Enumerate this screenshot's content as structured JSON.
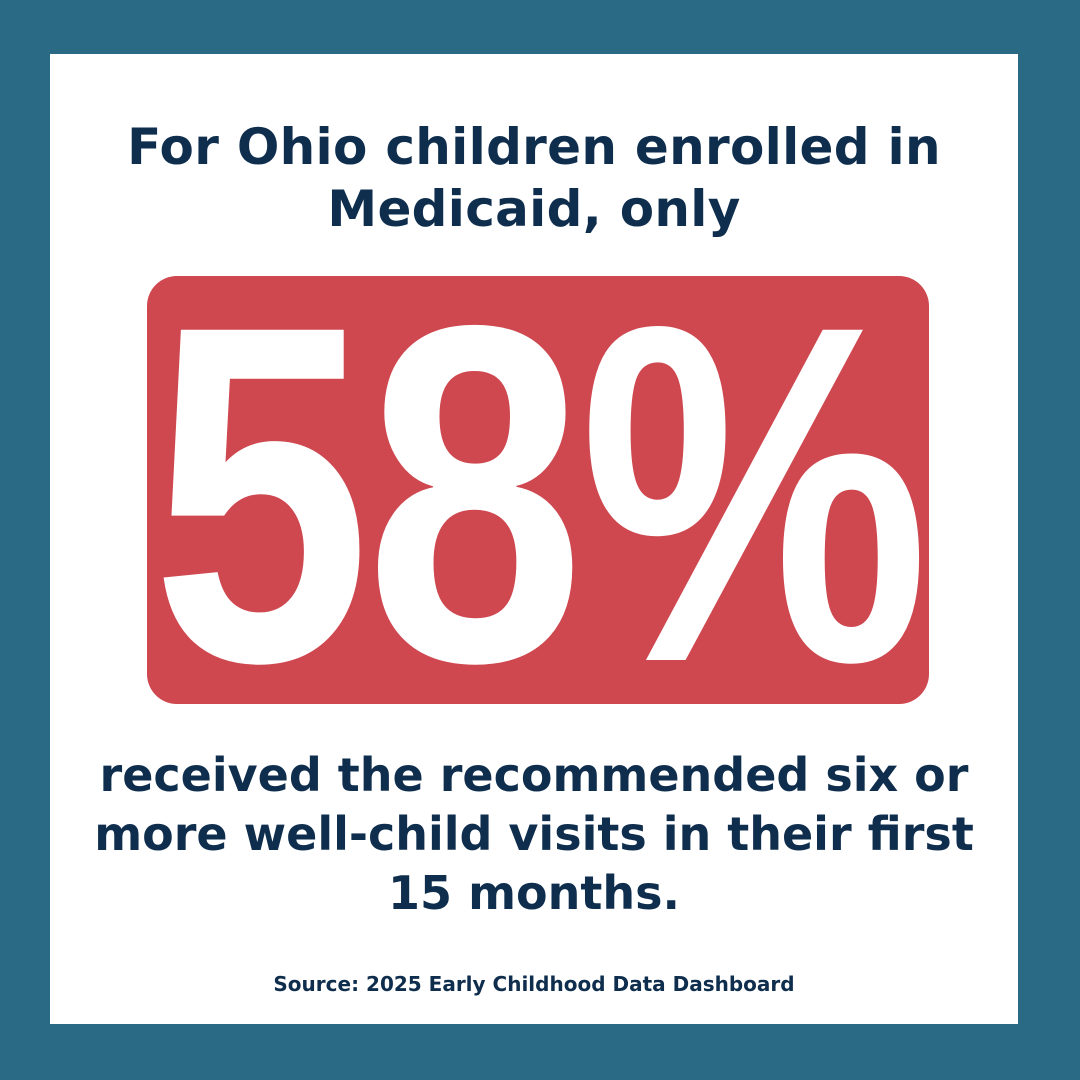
{
  "headline": {
    "line1": "For Ohio children enrolled in",
    "line2": "Medicaid, only"
  },
  "stat": {
    "value": "58%",
    "percent": 58
  },
  "body": {
    "line1": "received the recommended six or",
    "line2": "more well-child visits in their first",
    "line3": "15 months."
  },
  "source": "Source: 2025 Early Childhood Data Dashboard",
  "colors": {
    "border": "#2a6a84",
    "card": "#ffffff",
    "text": "#0f2e4d",
    "accent": "#cf4850",
    "stat_text": "#ffffff"
  }
}
